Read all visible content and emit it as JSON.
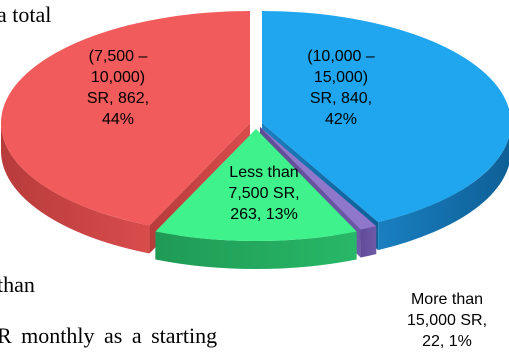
{
  "document": {
    "line_1": "a total",
    "line_2": "than",
    "line_3": "R monthly as a starting"
  },
  "chart_data": {
    "type": "pie",
    "style": "3d-exploded",
    "slices": [
      {
        "category": "(7,500 –\n10,000)\nSR",
        "value": 862,
        "percent": "44%",
        "color": "#f15b5b"
      },
      {
        "category": "(10,000 –\n15,000)\nSR",
        "value": 840,
        "percent": "42%",
        "color": "#1fa6ee"
      },
      {
        "category": "More than\n15,000 SR",
        "value": 22,
        "percent": "1%",
        "color": "#8f77cc"
      },
      {
        "category": "Less than\n7,500 SR",
        "value": 263,
        "percent": "13%",
        "color": "#3ff28c"
      }
    ],
    "labels": [
      {
        "lines": [
          "(7,500 –",
          "10,000)",
          "SR, 862,",
          "44%"
        ]
      },
      {
        "lines": [
          "(10,000 –",
          "15,000)",
          "SR, 840,",
          "42%"
        ]
      },
      {
        "lines": [
          "More than",
          "15,000 SR,",
          "22, 1%"
        ]
      },
      {
        "lines": [
          "Less than",
          "7,500 SR,",
          "263, 13%"
        ]
      }
    ]
  }
}
